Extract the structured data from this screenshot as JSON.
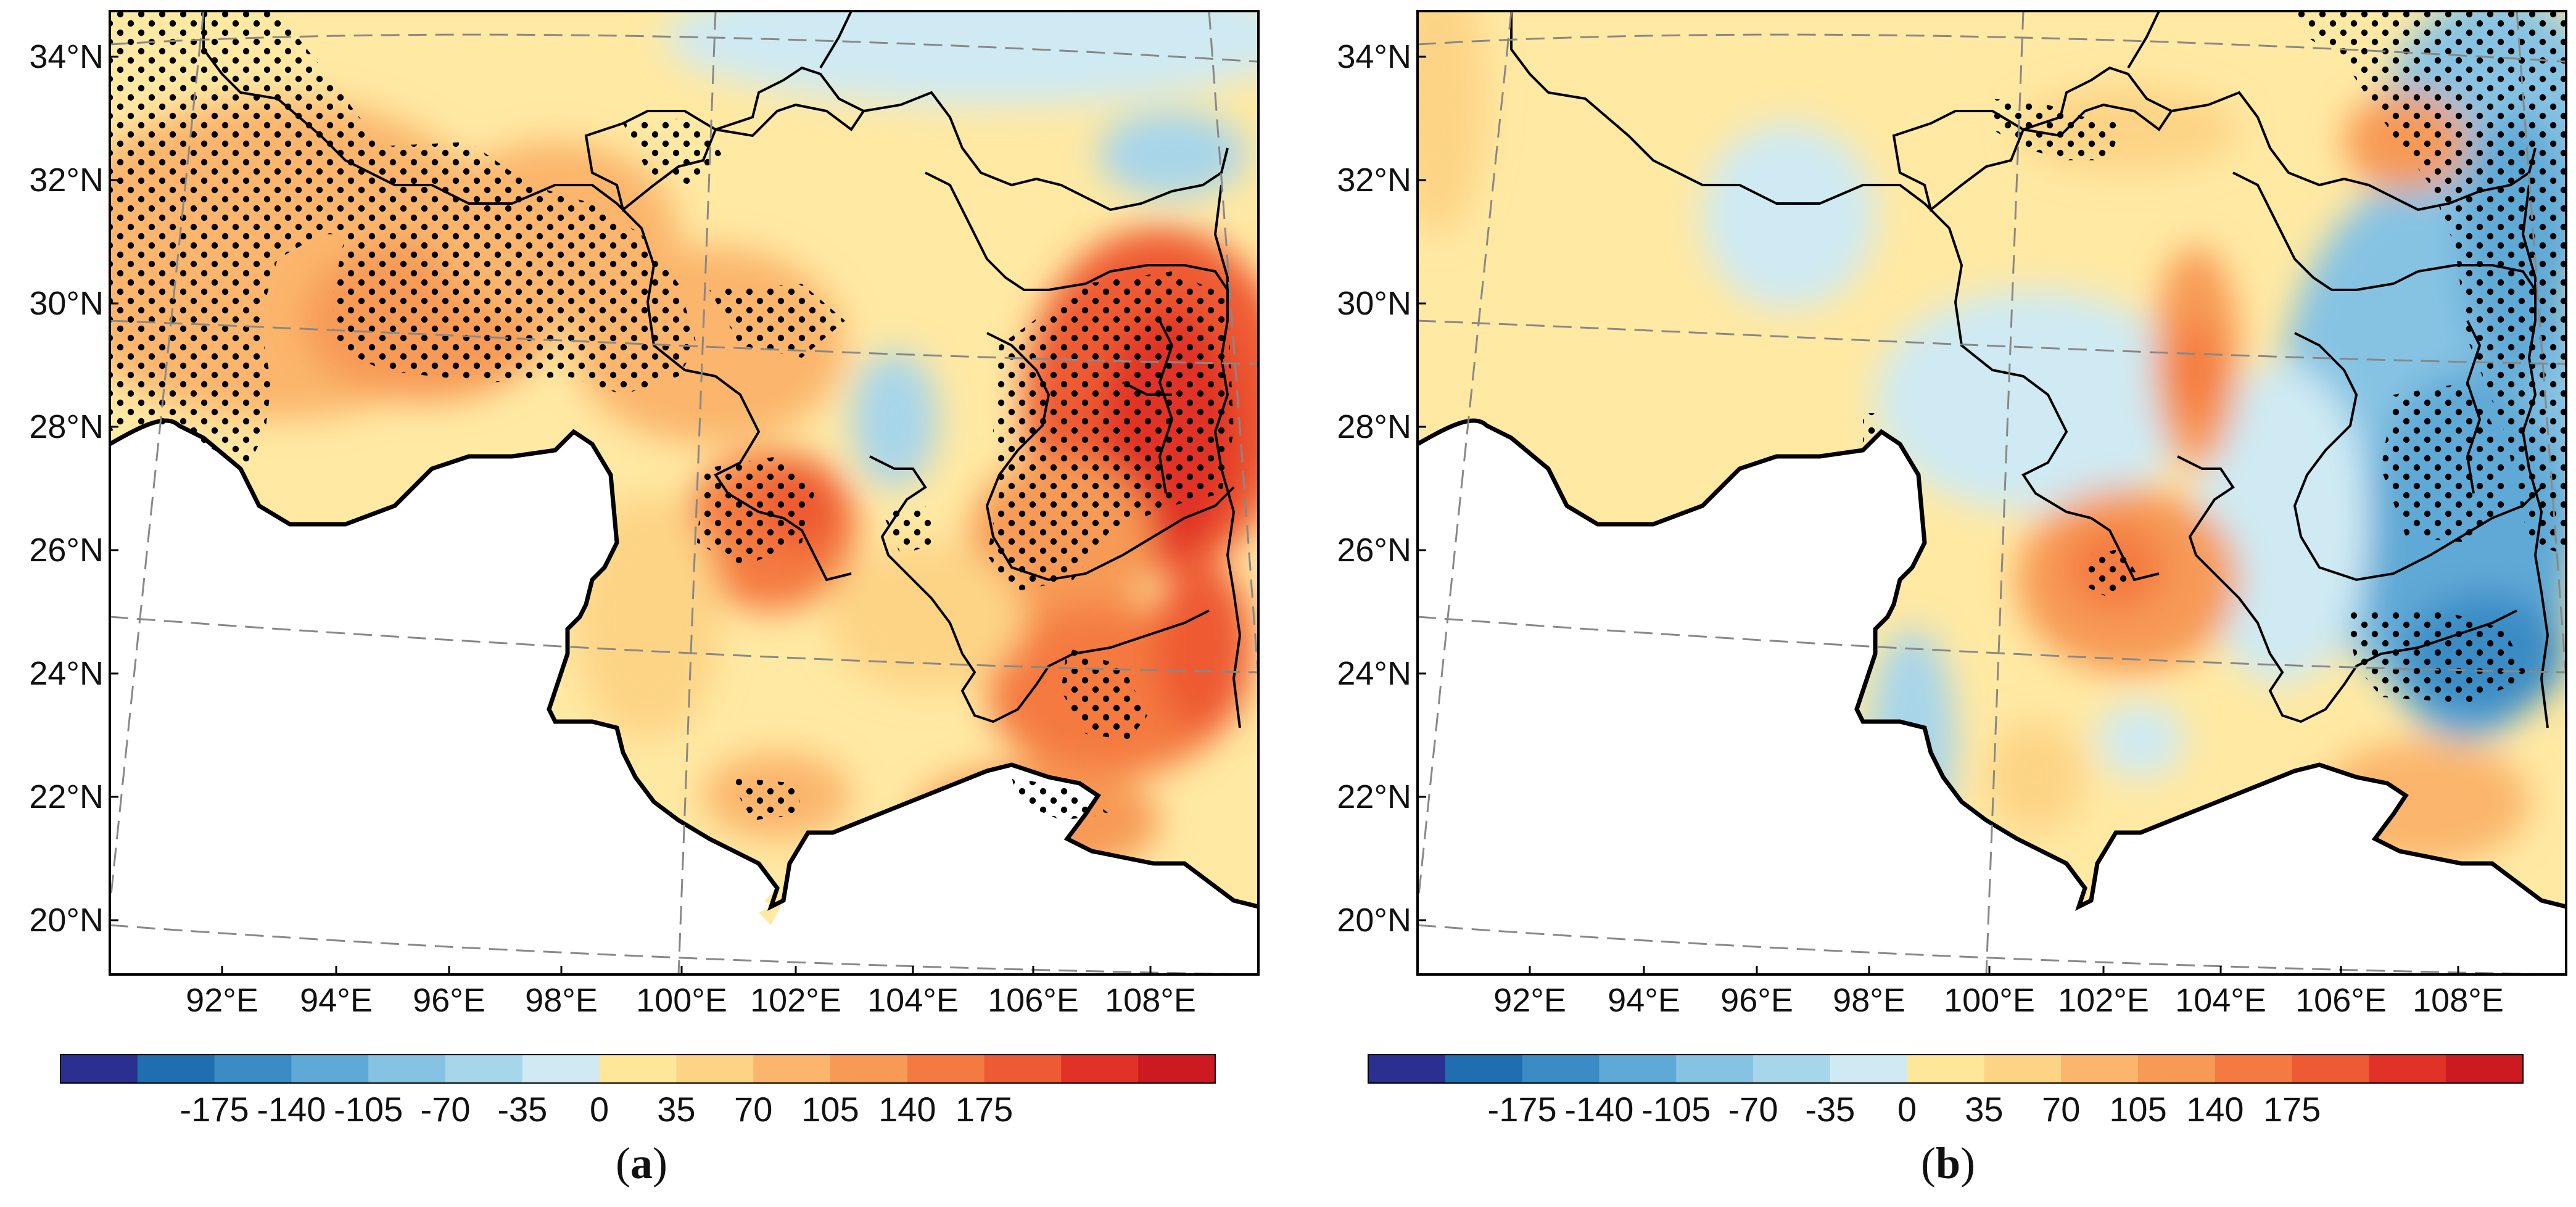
{
  "figure": {
    "panels": [
      {
        "id": "a",
        "caption_open": "(",
        "caption_letter": "a",
        "caption_close": ")",
        "lat_labels": [
          "34°N",
          "32°N",
          "30°N",
          "28°N",
          "26°N",
          "24°N",
          "22°N",
          "20°N"
        ],
        "lon_labels": [
          "92°E",
          "94°E",
          "96°E",
          "98°E",
          "100°E",
          "102°E",
          "104°E",
          "106°E",
          "108°E"
        ],
        "pattern": "warm"
      },
      {
        "id": "b",
        "caption_open": "(",
        "caption_letter": "b",
        "caption_close": ")",
        "lat_labels": [
          "34°N",
          "32°N",
          "30°N",
          "28°N",
          "26°N",
          "24°N",
          "22°N",
          "20°N"
        ],
        "lon_labels": [
          "92°E",
          "94°E",
          "96°E",
          "98°E",
          "100°E",
          "102°E",
          "104°E",
          "106°E",
          "108°E"
        ],
        "pattern": "dipole"
      }
    ],
    "colorbar": {
      "tick_labels": [
        "-175",
        "-140",
        "-105",
        "-70",
        "-35",
        "0",
        "35",
        "70",
        "105",
        "140",
        "175"
      ],
      "colors": [
        "#2b2f8f",
        "#1f6fb0",
        "#3b8cc5",
        "#5ea9d6",
        "#86c3e3",
        "#a7d5ea",
        "#cfeaf3",
        "#ffe79a",
        "#fdd486",
        "#fbb56c",
        "#f79a55",
        "#f47a41",
        "#ee5a33",
        "#e03226",
        "#cc1a22"
      ]
    },
    "colors": {
      "land_outline": "#000000",
      "white_region": "#ffffff",
      "frame": "#000000",
      "grid": "#888888",
      "stipple": "#000000"
    }
  }
}
